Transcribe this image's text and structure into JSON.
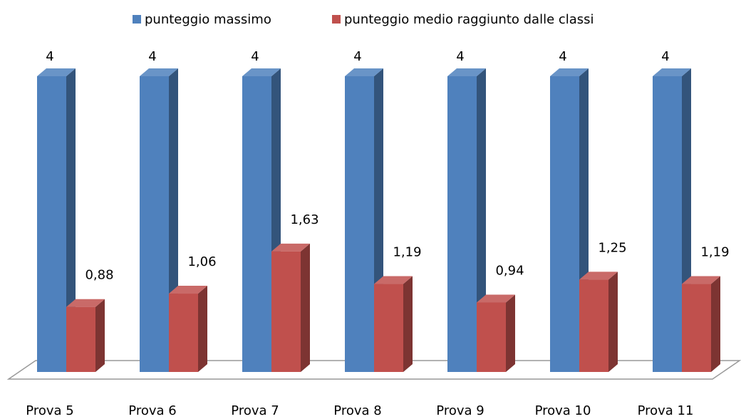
{
  "chart_data": {
    "type": "bar3d",
    "categories": [
      "Prova 5",
      "Prova 6",
      "Prova 7",
      "Prova 8",
      "Prova 9",
      "Prova 10",
      "Prova 11"
    ],
    "series": [
      {
        "name": "punteggio massimo",
        "color": "#4f81bd",
        "values": [
          4,
          4,
          4,
          4,
          4,
          4,
          4
        ]
      },
      {
        "name": "punteggio medio raggiunto dalle classi",
        "color": "#c0504d",
        "values": [
          0.88,
          1.06,
          1.63,
          1.19,
          0.94,
          1.25,
          1.19
        ],
        "value_labels": [
          "0,88",
          "1,06",
          "1,63",
          "1,19",
          "0,94",
          "1,25",
          "1,19"
        ]
      }
    ],
    "legend": "top"
  }
}
